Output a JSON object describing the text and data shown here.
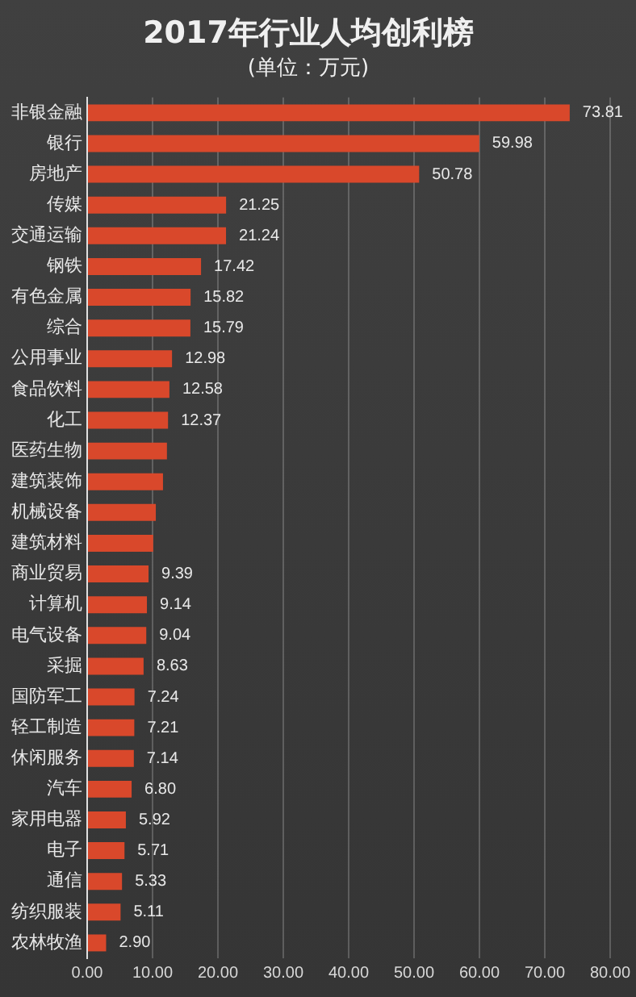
{
  "chart_data": {
    "type": "bar",
    "orientation": "horizontal",
    "title": "2017年行业人均创利榜",
    "subtitle": "(单位：万元)",
    "categories": [
      "非银金融",
      "银行",
      "房地产",
      "传媒",
      "交通运输",
      "钢铁",
      "有色金属",
      "综合",
      "公用事业",
      "食品饮料",
      "化工",
      "医药生物",
      "建筑装饰",
      "机械设备",
      "建筑材料",
      "商业贸易",
      "计算机",
      "电气设备",
      "采掘",
      "国防军工",
      "轻工制造",
      "休闲服务",
      "汽车",
      "家用电器",
      "电子",
      "通信",
      "纺织服装",
      "农林牧渔"
    ],
    "values": [
      73.81,
      59.98,
      50.78,
      21.25,
      21.24,
      17.42,
      15.82,
      15.79,
      12.98,
      12.58,
      12.37,
      12.2,
      11.6,
      10.5,
      10.1,
      9.39,
      9.14,
      9.04,
      8.63,
      7.24,
      7.21,
      7.14,
      6.8,
      5.92,
      5.71,
      5.33,
      5.11,
      2.9
    ],
    "value_labels": [
      "73.81",
      "59.98",
      "50.78",
      "21.25",
      "21.24",
      "17.42",
      "15.82",
      "15.79",
      "12.98",
      "12.58",
      "12.37",
      null,
      null,
      null,
      null,
      "9.39",
      "9.14",
      "9.04",
      "8.63",
      "7.24",
      "7.21",
      "7.14",
      "6.80",
      "5.92",
      "5.71",
      "5.33",
      "5.11",
      "2.90"
    ],
    "color": "#d9482b",
    "xlim": [
      0,
      80
    ],
    "xticks": [
      {
        "value": 0,
        "label": "0.00"
      },
      {
        "value": 10,
        "label": "10.00"
      },
      {
        "value": 20,
        "label": "20.00"
      },
      {
        "value": 30,
        "label": "30.00"
      },
      {
        "value": 40,
        "label": "40.00"
      },
      {
        "value": 50,
        "label": "50.00"
      },
      {
        "value": 60,
        "label": "60.00"
      },
      {
        "value": 70,
        "label": "70.00"
      },
      {
        "value": 80,
        "label": "80.00"
      }
    ],
    "grid": "x",
    "legend": false
  }
}
